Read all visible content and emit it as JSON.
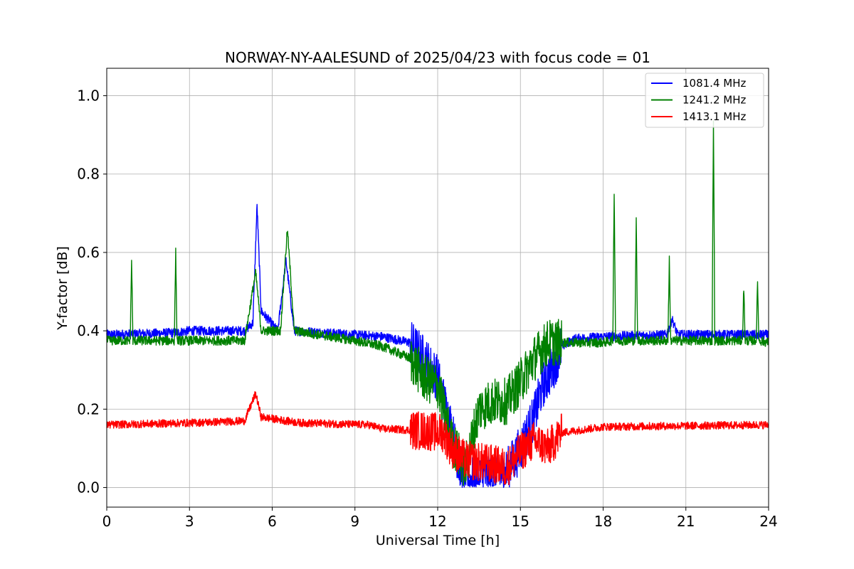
{
  "chart_data": {
    "type": "line",
    "title": "NORWAY-NY-AALESUND of 2025/04/23 with focus code = 01",
    "xlabel": "Universal Time [h]",
    "ylabel": "Y-factor [dB]",
    "xlim": [
      0,
      24
    ],
    "ylim": [
      -0.05,
      1.07
    ],
    "xticks": [
      0,
      3,
      6,
      9,
      12,
      15,
      18,
      21,
      24
    ],
    "yticks": [
      0.0,
      0.2,
      0.4,
      0.6,
      0.8,
      1.0
    ],
    "xtick_labels": [
      "0",
      "3",
      "6",
      "9",
      "12",
      "15",
      "18",
      "21",
      "24"
    ],
    "ytick_labels": [
      "0.0",
      "0.2",
      "0.4",
      "0.6",
      "0.8",
      "1.0"
    ],
    "grid": true,
    "legend_position": "top-right",
    "series": [
      {
        "name": "1081.4 MHz",
        "color": "#0000ff",
        "noise": 0.012,
        "points": [
          [
            0,
            0.39
          ],
          [
            2.5,
            0.395
          ],
          [
            3,
            0.4
          ],
          [
            5,
            0.4
          ],
          [
            5.3,
            0.42
          ],
          [
            5.45,
            0.72
          ],
          [
            5.6,
            0.45
          ],
          [
            6.2,
            0.4
          ],
          [
            6.5,
            0.58
          ],
          [
            6.8,
            0.4
          ],
          [
            9,
            0.39
          ],
          [
            10,
            0.385
          ],
          [
            11,
            0.37
          ],
          [
            11.5,
            0.33
          ],
          [
            12,
            0.28
          ],
          [
            12.5,
            0.15
          ],
          [
            12.8,
            0.05
          ],
          [
            13.2,
            0.02
          ],
          [
            13.8,
            0.03
          ],
          [
            14.5,
            0.04
          ],
          [
            15,
            0.1
          ],
          [
            15.5,
            0.18
          ],
          [
            15.8,
            0.26
          ],
          [
            16.2,
            0.31
          ],
          [
            16.5,
            0.36
          ],
          [
            17,
            0.38
          ],
          [
            18,
            0.385
          ],
          [
            20.3,
            0.39
          ],
          [
            20.5,
            0.43
          ],
          [
            20.7,
            0.39
          ],
          [
            24,
            0.39
          ]
        ]
      },
      {
        "name": "1241.2 MHz",
        "color": "#008000",
        "noise": 0.012,
        "points": [
          [
            0,
            0.375
          ],
          [
            0.85,
            0.375
          ],
          [
            0.9,
            0.58
          ],
          [
            0.95,
            0.375
          ],
          [
            2.45,
            0.375
          ],
          [
            2.5,
            0.6
          ],
          [
            2.55,
            0.375
          ],
          [
            5,
            0.375
          ],
          [
            5.4,
            0.55
          ],
          [
            5.6,
            0.4
          ],
          [
            6.3,
            0.4
          ],
          [
            6.55,
            0.66
          ],
          [
            6.8,
            0.4
          ],
          [
            9,
            0.375
          ],
          [
            10,
            0.36
          ],
          [
            11,
            0.33
          ],
          [
            11.5,
            0.28
          ],
          [
            12,
            0.26
          ],
          [
            12.5,
            0.12
          ],
          [
            13,
            0.05
          ],
          [
            13.5,
            0.2
          ],
          [
            14,
            0.22
          ],
          [
            14.5,
            0.22
          ],
          [
            15,
            0.27
          ],
          [
            15.5,
            0.33
          ],
          [
            16,
            0.37
          ],
          [
            18,
            0.37
          ],
          [
            18.35,
            0.375
          ],
          [
            18.4,
            0.76
          ],
          [
            18.45,
            0.375
          ],
          [
            19.15,
            0.375
          ],
          [
            19.2,
            0.68
          ],
          [
            19.25,
            0.375
          ],
          [
            20.35,
            0.375
          ],
          [
            20.4,
            0.58
          ],
          [
            20.45,
            0.375
          ],
          [
            21.95,
            0.375
          ],
          [
            22,
            0.94
          ],
          [
            22.05,
            0.375
          ],
          [
            23.05,
            0.375
          ],
          [
            23.1,
            0.51
          ],
          [
            23.15,
            0.375
          ],
          [
            23.55,
            0.375
          ],
          [
            23.6,
            0.52
          ],
          [
            23.65,
            0.375
          ],
          [
            24,
            0.37
          ]
        ]
      },
      {
        "name": "1413.1 MHz",
        "color": "#ff0000",
        "noise": 0.01,
        "points": [
          [
            0,
            0.16
          ],
          [
            3,
            0.165
          ],
          [
            5,
            0.17
          ],
          [
            5.4,
            0.24
          ],
          [
            5.6,
            0.18
          ],
          [
            7,
            0.165
          ],
          [
            9.5,
            0.16
          ],
          [
            10,
            0.15
          ],
          [
            11.5,
            0.145
          ],
          [
            12.2,
            0.14
          ],
          [
            12.5,
            0.1
          ],
          [
            13,
            0.07
          ],
          [
            14,
            0.06
          ],
          [
            14.5,
            0.05
          ],
          [
            15,
            0.09
          ],
          [
            15.5,
            0.12
          ],
          [
            16,
            0.1
          ],
          [
            16.5,
            0.14
          ],
          [
            17.5,
            0.15
          ],
          [
            18,
            0.155
          ],
          [
            24,
            0.16
          ]
        ]
      }
    ]
  }
}
